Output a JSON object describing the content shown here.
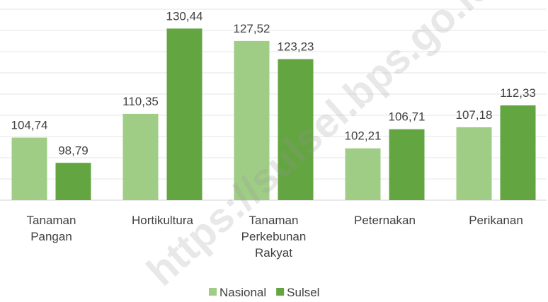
{
  "chart_data": {
    "type": "bar",
    "categories": [
      "Tanaman Pangan",
      "Hortikultura",
      "Tanaman Perkebunan Rakyat",
      "Peternakan",
      "Perikanan"
    ],
    "series": [
      {
        "name": "Nasional",
        "color": "#9fcd86",
        "values": [
          104.74,
          110.35,
          127.52,
          102.21,
          107.18
        ],
        "value_labels": [
          "104,74",
          "110,35",
          "127,52",
          "102,21",
          "107,18"
        ]
      },
      {
        "name": "Sulsel",
        "color": "#63a541",
        "values": [
          98.79,
          130.44,
          123.23,
          106.71,
          112.33
        ],
        "value_labels": [
          "98,79",
          "130,44",
          "123,23",
          "106,71",
          "112,33"
        ]
      }
    ],
    "ylim": [
      90,
      135
    ],
    "yticks": [
      90,
      95,
      100,
      105,
      110,
      115,
      120,
      125,
      130,
      135
    ],
    "grid": true,
    "legend": "bottom",
    "watermark": "https://sulsel.bps.go.id"
  }
}
